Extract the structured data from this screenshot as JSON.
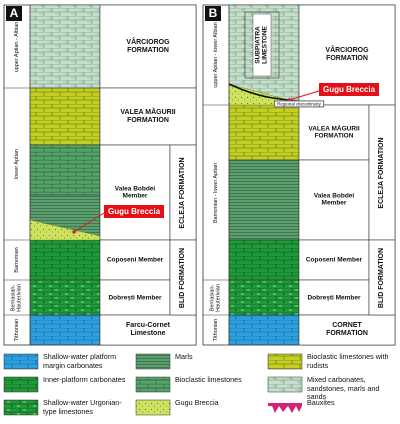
{
  "panels": [
    {
      "label": "A",
      "ages": [
        "upper Aptian - Albian",
        "lower Aptian",
        "Barremian",
        "Berriasian-Hauterivian",
        "Tithonian"
      ],
      "units": [
        "VÂRCIOROG FORMATION",
        "VALEA MĂGURII FORMATION",
        "Valea Bobdei Member",
        "Coposeni Member",
        "Dobrești Member",
        "Farcu-Cornet Limestone"
      ],
      "formations": [
        "ECLEJA FORMATION",
        "BLID FORMATION"
      ],
      "callout": "Gugu Breccia"
    },
    {
      "label": "B",
      "ages": [
        "upper Aptian - lower Albian",
        "Barremian - lower Aptian",
        "Berriasian-Hauterivian",
        "Tithonian"
      ],
      "units": [
        "VÂRCIOROG FORMATION",
        "VALEA MĂGURII FORMATION",
        "Valea Bobdei Member",
        "Coposeni Member",
        "Dobrești Member",
        "CORNET FORMATION"
      ],
      "formations": [
        "ECLEJA FORMATION",
        "BLID FORMATION"
      ],
      "inset": "SUBPIATRA LIMESTONE",
      "callout": "Gugu Breccia",
      "note": "Regional discontinuity"
    }
  ],
  "legend": [
    "Shallow-water platform margin carbonates",
    "Inner-platform carbonates",
    "Shallow-water Urgonian-type limestones",
    "Marls",
    "Bioclastic limestones",
    "Gugu Breccia",
    "Bioclastic limestones with rudists",
    "Mixed carbonates, sandstones, marls and sands",
    "Bauxites"
  ]
}
